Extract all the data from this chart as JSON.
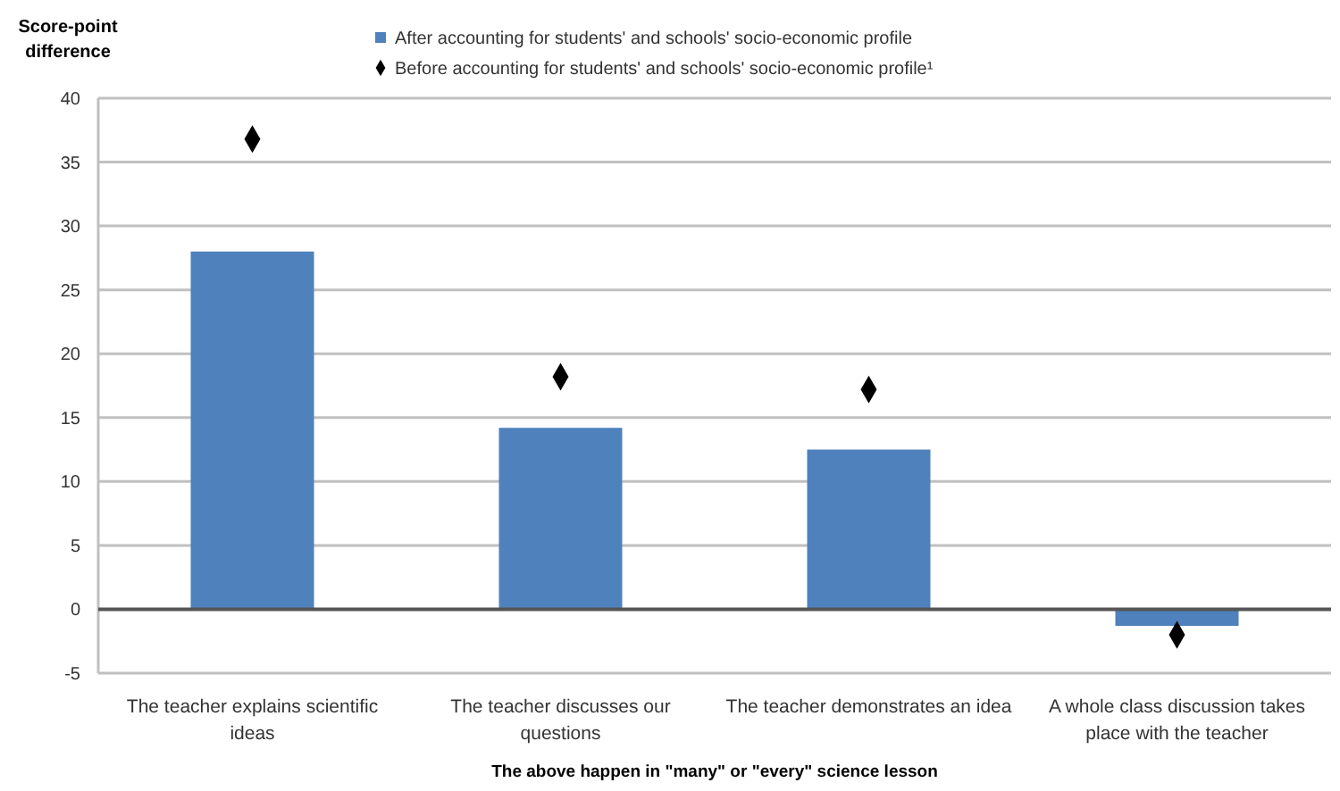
{
  "chart_data": {
    "type": "bar",
    "ylabel": "Score-point difference",
    "xlabel": "The above happen in \"many\" or \"every\" science lesson",
    "categories": [
      "The teacher explains scientific ideas",
      "The teacher discusses our questions",
      "The teacher demonstrates an idea",
      "A whole class discussion takes place with the teacher"
    ],
    "series": [
      {
        "name": "After accounting for students' and schools' socio-economic profile",
        "color": "#4f81bd",
        "values": [
          28,
          14.2,
          12.5,
          -1.3
        ]
      },
      {
        "name": "Before accounting for students' and schools' socio-economic profile¹",
        "color": "#000000",
        "type": "scatter",
        "marker": "diamond",
        "x": [
          "The teacher explains scientific ideas",
          "The teacher discusses our questions",
          "The teacher demonstrates an idea",
          "A whole class discussion takes place with the teacher"
        ],
        "values": [
          36.8,
          18.2,
          17.2,
          -2.0
        ]
      }
    ],
    "ylim": [
      -5,
      40
    ],
    "yticks": [
      -5,
      0,
      5,
      10,
      15,
      20,
      25,
      30,
      35,
      40
    ],
    "grid": "y",
    "legend": "top"
  }
}
